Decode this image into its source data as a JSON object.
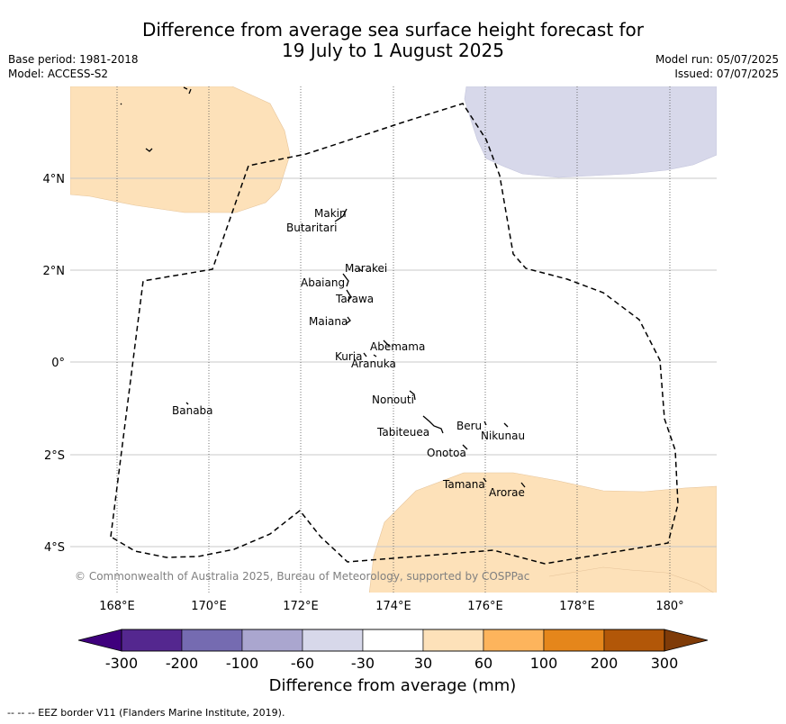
{
  "title_line1": "Difference from average sea surface height forecast for",
  "title_line2": "19 July to 1 August 2025",
  "meta": {
    "base_period": "Base period: 1981-2018",
    "model": "Model: ACCESS-S2",
    "model_run": "Model run: 05/07/2025",
    "issued": "Issued: 07/07/2025"
  },
  "map": {
    "lon_ticks": [
      "168°E",
      "170°E",
      "172°E",
      "174°E",
      "176°E",
      "178°E",
      "180°"
    ],
    "lat_ticks": [
      "4°N",
      "2°N",
      "0°",
      "2°S",
      "4°S"
    ],
    "copyright": "© Commonwealth of Australia 2025, Bureau of Meteorology, supported by COSPPac",
    "islands": [
      "Makin",
      "Butaritari",
      "Marakei",
      "Abaiang",
      "Tarawa",
      "Maiana",
      "Abemama",
      "Kuria",
      "Aranuka",
      "Banaba",
      "Nonouti",
      "Beru",
      "Nikunau",
      "Tabiteuea",
      "Onotoa",
      "Tamana",
      "Arorae"
    ]
  },
  "colorbar": {
    "ticks": [
      "-300",
      "-200",
      "-100",
      "-60",
      "-30",
      "30",
      "60",
      "100",
      "200",
      "300"
    ],
    "colors": [
      "#54278f",
      "#756bb1",
      "#aaa6cf",
      "#d7d8ea",
      "#ffffff",
      "#fde1b9",
      "#fdb45c",
      "#e5861b",
      "#b25708"
    ],
    "extend_low_color": "#3f007d",
    "extend_high_color": "#7f3b08",
    "label": "Difference from average (mm)"
  },
  "footer": "--  --  -- EEZ border V11 (Flanders Marine Institute, 2019)."
}
